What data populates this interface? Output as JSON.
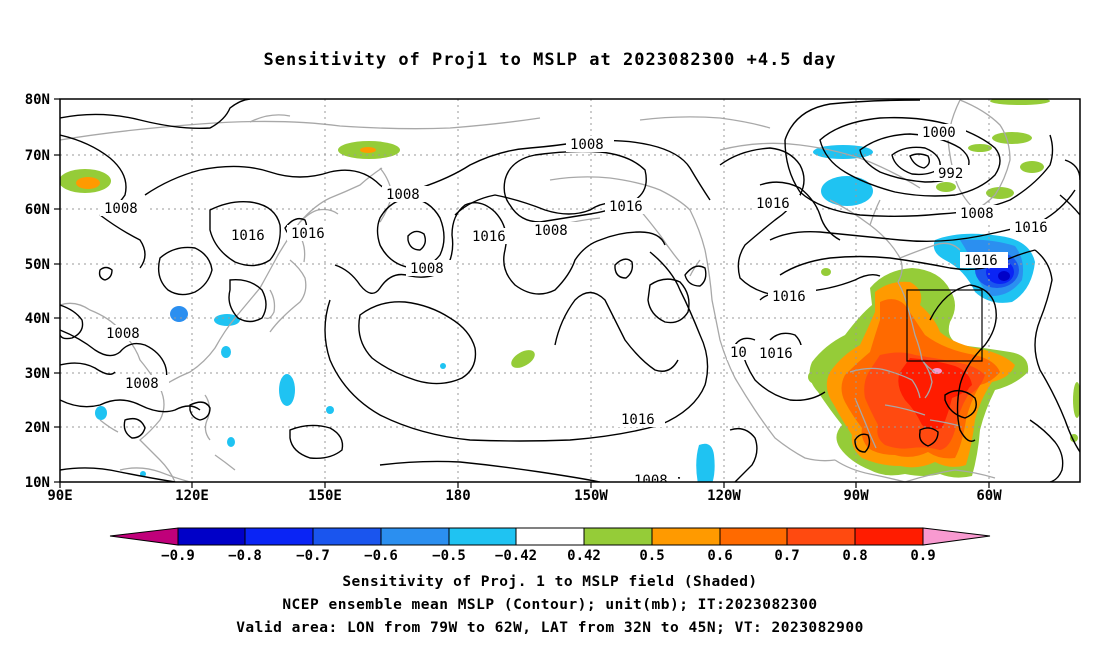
{
  "title": "Sensitivity of Proj1 to MSLP at 2023082300 +4.5 day",
  "map": {
    "lat_labels": [
      "80N",
      "70N",
      "60N",
      "50N",
      "40N",
      "30N",
      "20N",
      "10N"
    ],
    "lon_labels": [
      "90E",
      "120E",
      "150E",
      "180",
      "150W",
      "120W",
      "90W",
      "60W"
    ],
    "contour_labels": {
      "l1008a": "1008",
      "l1008b": "1008",
      "l1008c": "1008",
      "l1008d": "1008",
      "l1008e": "1008",
      "l1008f": "1008",
      "l1008g": "1008",
      "l1008h": "1008",
      "l1016a": "1016",
      "l1016b": "1016",
      "l1016c": "1016",
      "l1016d": "1016",
      "l1016e": "1016",
      "l1016f": "1016",
      "l1016g": "1016",
      "l1016h": "1016",
      "l1016i": "1016",
      "l1016j": "1016",
      "l1000": "1000",
      "l992": "992",
      "l10partial": "10",
      "l1008partial": "1008"
    },
    "colors": {
      "coast": "#a8a8a8",
      "grid": "#9a9a9a",
      "contour": "#000000",
      "neg09": "#c0007a",
      "neg08": "#0000c8",
      "neg07": "#0a24f5",
      "neg06": "#1a55ee",
      "neg05": "#2b8ff0",
      "neg042": "#1fc3f2",
      "pos042": "#95cc38",
      "pos05": "#ff9a00",
      "pos06": "#ff6a00",
      "pos07": "#ff4a10",
      "pos08": "#ff1c00",
      "pos09": "#f89ad0"
    }
  },
  "colorbar": {
    "labels": [
      "−0.9",
      "−0.8",
      "−0.7",
      "−0.6",
      "−0.5",
      "−0.42",
      "0.42",
      "0.5",
      "0.6",
      "0.7",
      "0.8",
      "0.9"
    ]
  },
  "footer": {
    "line1": "Sensitivity of Proj. 1 to MSLP field (Shaded)",
    "line2": "NCEP ensemble mean MSLP (Contour); unit(mb); IT:2023082300",
    "line3": "Valid area: LON from 79W to 62W, LAT from 32N to 45N; VT: 2023082900"
  }
}
